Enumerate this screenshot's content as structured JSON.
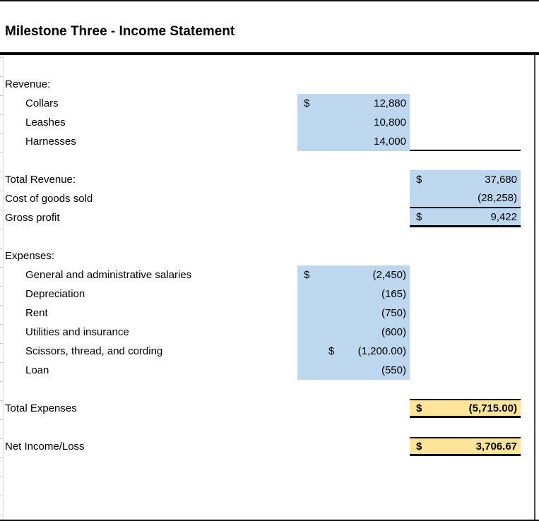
{
  "title": "Milestone Three - Income Statement",
  "colors": {
    "highlight_blue": "#BDD7EE",
    "highlight_gold": "#FFE499",
    "border_black": "#000000"
  },
  "rows": [
    {
      "label": "Revenue:"
    },
    {
      "label": "Collars",
      "col1": {
        "dollar": "$",
        "value": "12,880"
      }
    },
    {
      "label": "Leashes",
      "col1": {
        "value": "10,800"
      }
    },
    {
      "label": "Harnesses",
      "col1": {
        "value": "14,000"
      }
    },
    {
      "label": ""
    },
    {
      "label": "Total Revenue:",
      "col2": {
        "dollar": "$",
        "value": "37,680"
      }
    },
    {
      "label": "Cost of goods sold",
      "col2": {
        "value": "(28,258)"
      }
    },
    {
      "label": "Gross profit",
      "col2": {
        "dollar": "$",
        "value": "9,422"
      }
    },
    {
      "label": ""
    },
    {
      "label": "Expenses:"
    },
    {
      "label": "General and administrative salaries",
      "col1": {
        "dollar": "$",
        "value": "(2,450)"
      }
    },
    {
      "label": "Depreciation",
      "col1": {
        "value": "(165)"
      }
    },
    {
      "label": "Rent",
      "col1": {
        "value": "(750)"
      }
    },
    {
      "label": "Utilities and insurance",
      "col1": {
        "value": "(600)"
      }
    },
    {
      "label": "Scissors, thread, and cording",
      "col1": {
        "dollar": "$",
        "value": "(1,200.00)"
      }
    },
    {
      "label": "Loan",
      "col1": {
        "value": "(550)"
      }
    },
    {
      "label": ""
    },
    {
      "label": "Total Expenses",
      "col2": {
        "dollar": "$",
        "value": "(5,715.00)"
      }
    },
    {
      "label": ""
    },
    {
      "label": "Net Income/Loss",
      "col2": {
        "dollar": "$",
        "value": "3,706.67"
      }
    }
  ]
}
